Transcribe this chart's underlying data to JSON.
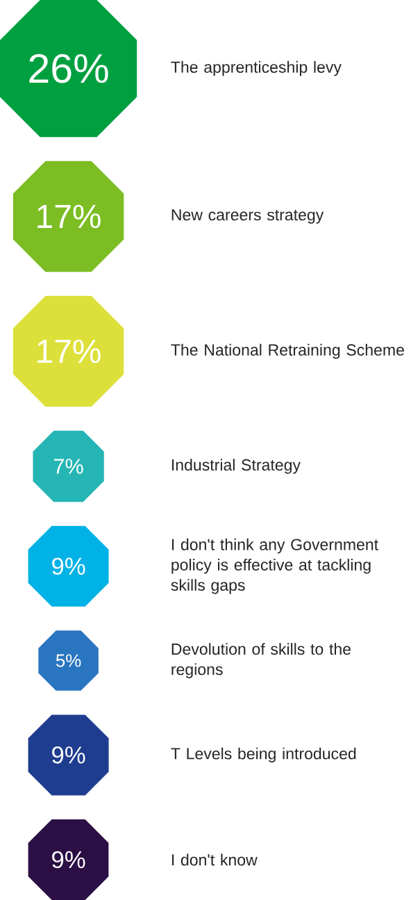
{
  "chart_data": {
    "type": "other",
    "categories": [
      "The apprenticeship levy",
      "New careers strategy",
      "The National Retraining Scheme",
      "Industrial Strategy",
      "I don't think any Government policy is effective at tackling skills gaps",
      "Devolution of skills to the regions",
      "T Levels being introduced",
      "I don't know"
    ],
    "values": [
      26,
      17,
      17,
      7,
      9,
      5,
      9,
      9
    ],
    "value_labels": [
      "26%",
      "17%",
      "17%",
      "7%",
      "9%",
      "5%",
      "9%",
      "9%"
    ],
    "colors": [
      "#00a040",
      "#7cbd24",
      "#dde03a",
      "#26b5b5",
      "#00b2e6",
      "#2a75bf",
      "#1f3d8f",
      "#2b0f45"
    ]
  }
}
